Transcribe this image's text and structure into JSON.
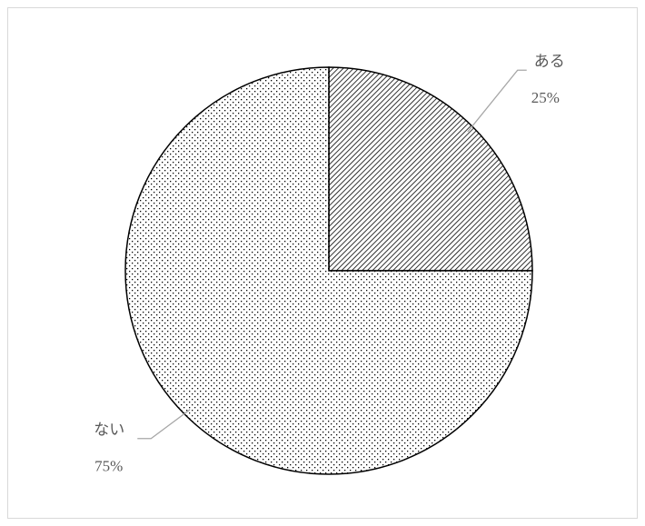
{
  "chart_data": {
    "type": "pie",
    "categories": [
      "ある",
      "ない"
    ],
    "values": [
      25,
      75
    ],
    "value_labels": [
      "25%",
      "75%"
    ],
    "patterns": [
      "diagonal",
      "dots"
    ],
    "start_angle": 90,
    "direction": "clockwise"
  }
}
